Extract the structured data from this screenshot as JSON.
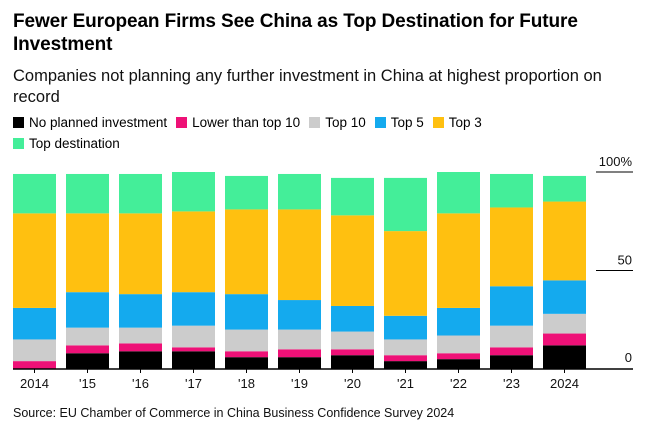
{
  "title": "Fewer European Firms See China as Top Destination for Future Investment",
  "subtitle": "Companies not planning any further investment in China at highest proportion on record",
  "source": "Source: EU Chamber of Commerce in China Business Confidence Survey 2024",
  "chart_data": {
    "type": "bar",
    "stacked": true,
    "categories": [
      "2014",
      "'15",
      "'16",
      "'17",
      "'18",
      "'19",
      "'20",
      "'21",
      "'22",
      "'23",
      "2024"
    ],
    "series": [
      {
        "name": "No planned investment",
        "color": "#000000",
        "values": [
          0,
          8,
          9,
          9,
          6,
          6,
          7,
          4,
          5,
          7,
          12
        ]
      },
      {
        "name": "Lower than top 10",
        "color": "#ee1177",
        "values": [
          4,
          4,
          4,
          2,
          3,
          4,
          3,
          3,
          3,
          4,
          6
        ]
      },
      {
        "name": "Top 10",
        "color": "#cccccc",
        "values": [
          11,
          9,
          8,
          11,
          11,
          10,
          9,
          8,
          9,
          11,
          10
        ]
      },
      {
        "name": "Top 5",
        "color": "#14aaee",
        "values": [
          16,
          18,
          17,
          17,
          18,
          15,
          13,
          12,
          14,
          20,
          17
        ]
      },
      {
        "name": "Top 3",
        "color": "#ffc010",
        "values": [
          48,
          40,
          41,
          41,
          43,
          46,
          46,
          43,
          48,
          40,
          40
        ]
      },
      {
        "name": "Top destination",
        "color": "#44ee99",
        "values": [
          20,
          20,
          20,
          20,
          17,
          18,
          19,
          27,
          21,
          17,
          13
        ]
      }
    ],
    "yticks": [
      {
        "value": 100,
        "label": "100%"
      },
      {
        "value": 50,
        "label": "50"
      },
      {
        "value": 0,
        "label": "0"
      }
    ],
    "ylim": [
      0,
      100
    ],
    "xlabel": "",
    "ylabel": "",
    "legend_position": "top-left",
    "grid": false
  }
}
